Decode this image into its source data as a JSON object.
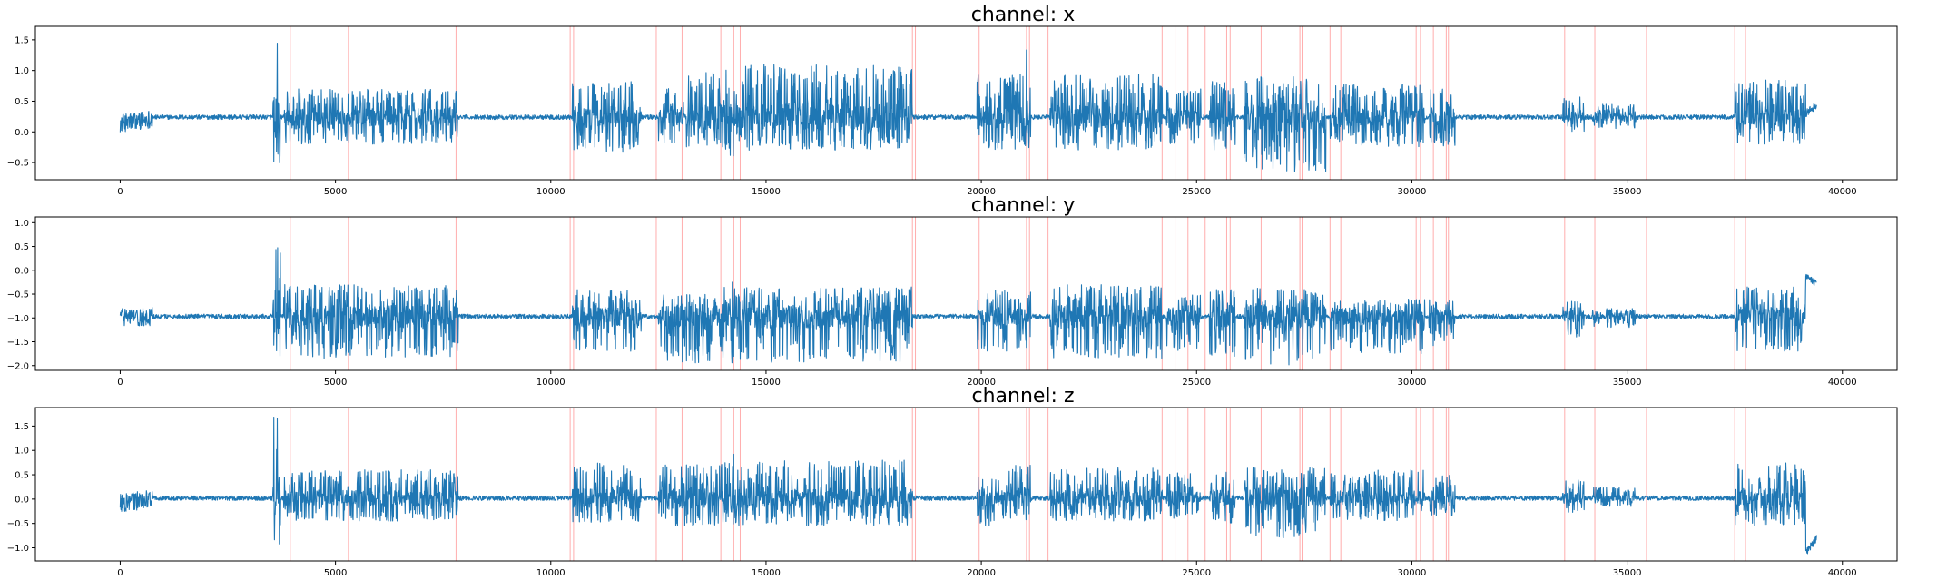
{
  "chart_data": [
    {
      "type": "line",
      "title": "channel: x",
      "xlim": [
        -1970,
        41270
      ],
      "ylim": [
        -0.78,
        1.72
      ],
      "xticks": [
        0,
        5000,
        10000,
        15000,
        20000,
        25000,
        30000,
        35000,
        40000
      ],
      "yticks": [
        -0.5,
        0.0,
        0.5,
        1.0,
        1.5
      ],
      "ytick_labels": [
        "−0.5",
        "0.0",
        "0.5",
        "1.0",
        "1.5"
      ],
      "series_color": "#1f77b4",
      "baseline": 0.24,
      "sample_count": 39400,
      "start_segment": [
        [
          0,
          0.14
        ],
        [
          750,
          0.22
        ]
      ],
      "end_segment": [
        [
          39150,
          0.3
        ],
        [
          39400,
          0.44
        ]
      ],
      "bursts": [
        {
          "start": 3550,
          "end": 3720,
          "low": -0.65,
          "high": 1.58
        },
        {
          "start": 3800,
          "end": 7850,
          "low": -0.2,
          "high": 0.7
        },
        {
          "start": 10500,
          "end": 12100,
          "low": -0.35,
          "high": 0.82
        },
        {
          "start": 12500,
          "end": 13100,
          "low": -0.2,
          "high": 0.72
        },
        {
          "start": 13150,
          "end": 14400,
          "low": -0.3,
          "high": 1.0
        },
        {
          "start": 14000,
          "end": 14300,
          "low": -0.4,
          "high": 1.2
        },
        {
          "start": 14400,
          "end": 18400,
          "low": -0.3,
          "high": 1.1
        },
        {
          "start": 19900,
          "end": 21150,
          "low": -0.3,
          "high": 0.95
        },
        {
          "start": 20950,
          "end": 21100,
          "low": -0.25,
          "high": 1.6
        },
        {
          "start": 21600,
          "end": 24200,
          "low": -0.3,
          "high": 0.95
        },
        {
          "start": 24300,
          "end": 25100,
          "low": -0.2,
          "high": 0.7
        },
        {
          "start": 25300,
          "end": 25900,
          "low": -0.3,
          "high": 0.85
        },
        {
          "start": 26100,
          "end": 28000,
          "low": -0.65,
          "high": 0.9
        },
        {
          "start": 28100,
          "end": 30300,
          "low": -0.25,
          "high": 0.78
        },
        {
          "start": 30400,
          "end": 31000,
          "low": -0.25,
          "high": 0.72
        },
        {
          "start": 33500,
          "end": 34000,
          "low": 0.0,
          "high": 0.6
        },
        {
          "start": 34200,
          "end": 35200,
          "low": 0.05,
          "high": 0.45
        },
        {
          "start": 37500,
          "end": 39150,
          "low": -0.2,
          "high": 0.85
        }
      ]
    },
    {
      "type": "line",
      "title": "channel: y",
      "xlim": [
        -1970,
        41270
      ],
      "ylim": [
        -2.1,
        1.12
      ],
      "xticks": [
        0,
        5000,
        10000,
        15000,
        20000,
        25000,
        30000,
        35000,
        40000
      ],
      "yticks": [
        -2.0,
        -1.5,
        -1.0,
        -0.5,
        0.0,
        0.5,
        1.0
      ],
      "ytick_labels": [
        "−2.0",
        "−1.5",
        "−1.0",
        "−0.5",
        "0.0",
        "0.5",
        "1.0"
      ],
      "series_color": "#1f77b4",
      "baseline": -0.97,
      "sample_count": 39400,
      "start_segment": [
        [
          0,
          -1.0
        ],
        [
          750,
          -0.97
        ]
      ],
      "end_segment": [
        [
          39150,
          -0.15
        ],
        [
          39400,
          -0.28
        ]
      ],
      "bursts": [
        {
          "start": 3550,
          "end": 3720,
          "low": -2.0,
          "high": 0.55
        },
        {
          "start": 3800,
          "end": 7850,
          "low": -1.85,
          "high": -0.3
        },
        {
          "start": 10500,
          "end": 12100,
          "low": -1.7,
          "high": -0.4
        },
        {
          "start": 12500,
          "end": 14400,
          "low": -1.95,
          "high": -0.5
        },
        {
          "start": 14000,
          "end": 14300,
          "low": -2.0,
          "high": -0.2
        },
        {
          "start": 14400,
          "end": 18400,
          "low": -1.95,
          "high": -0.35
        },
        {
          "start": 19900,
          "end": 21150,
          "low": -1.7,
          "high": -0.4
        },
        {
          "start": 21600,
          "end": 24200,
          "low": -1.85,
          "high": -0.3
        },
        {
          "start": 24300,
          "end": 25100,
          "low": -1.7,
          "high": -0.5
        },
        {
          "start": 25300,
          "end": 25900,
          "low": -1.85,
          "high": -0.4
        },
        {
          "start": 26100,
          "end": 28000,
          "low": -2.0,
          "high": -0.35
        },
        {
          "start": 28100,
          "end": 30300,
          "low": -1.75,
          "high": -0.6
        },
        {
          "start": 30400,
          "end": 31000,
          "low": -1.6,
          "high": -0.5
        },
        {
          "start": 33500,
          "end": 34000,
          "low": -1.4,
          "high": -0.65
        },
        {
          "start": 34200,
          "end": 35200,
          "low": -1.2,
          "high": -0.8
        },
        {
          "start": 37500,
          "end": 39150,
          "low": -1.7,
          "high": -0.35
        }
      ]
    },
    {
      "type": "line",
      "title": "channel: z",
      "xlim": [
        -1970,
        41270
      ],
      "ylim": [
        -1.27,
        1.88
      ],
      "xticks": [
        0,
        5000,
        10000,
        15000,
        20000,
        25000,
        30000,
        35000,
        40000
      ],
      "yticks": [
        -1.0,
        -0.5,
        0.0,
        0.5,
        1.0,
        1.5
      ],
      "ytick_labels": [
        "−1.0",
        "−0.5",
        "0.0",
        "0.5",
        "1.0",
        "1.5"
      ],
      "series_color": "#1f77b4",
      "baseline": 0.02,
      "sample_count": 39400,
      "start_segment": [
        [
          0,
          -0.08
        ],
        [
          750,
          0.0
        ]
      ],
      "end_segment": [
        [
          39150,
          -1.1
        ],
        [
          39400,
          -0.8
        ]
      ],
      "bursts": [
        {
          "start": 3550,
          "end": 3720,
          "low": -0.95,
          "high": 1.75
        },
        {
          "start": 3800,
          "end": 7850,
          "low": -0.45,
          "high": 0.6
        },
        {
          "start": 10500,
          "end": 12100,
          "low": -0.5,
          "high": 0.78
        },
        {
          "start": 12500,
          "end": 14400,
          "low": -0.55,
          "high": 0.72
        },
        {
          "start": 14000,
          "end": 14300,
          "low": -0.6,
          "high": 1.0
        },
        {
          "start": 14400,
          "end": 18400,
          "low": -0.55,
          "high": 0.8
        },
        {
          "start": 19900,
          "end": 21150,
          "low": -0.55,
          "high": 0.7
        },
        {
          "start": 21600,
          "end": 24200,
          "low": -0.45,
          "high": 0.65
        },
        {
          "start": 24300,
          "end": 25100,
          "low": -0.4,
          "high": 0.55
        },
        {
          "start": 25300,
          "end": 25900,
          "low": -0.5,
          "high": 0.6
        },
        {
          "start": 26100,
          "end": 28000,
          "low": -0.8,
          "high": 0.65
        },
        {
          "start": 28100,
          "end": 30300,
          "low": -0.45,
          "high": 0.6
        },
        {
          "start": 30400,
          "end": 31000,
          "low": -0.4,
          "high": 0.5
        },
        {
          "start": 33500,
          "end": 34000,
          "low": -0.3,
          "high": 0.4
        },
        {
          "start": 34200,
          "end": 35200,
          "low": -0.15,
          "high": 0.25
        },
        {
          "start": 37500,
          "end": 39150,
          "low": -0.6,
          "high": 0.75
        }
      ]
    }
  ],
  "event_lines": {
    "color": "#ff9999",
    "x": [
      3950,
      5300,
      7800,
      10450,
      10530,
      12450,
      13050,
      13950,
      14250,
      14400,
      18400,
      18470,
      19950,
      21050,
      21120,
      21550,
      24200,
      24500,
      24800,
      25200,
      25700,
      25780,
      26500,
      27400,
      27450,
      28100,
      28350,
      30100,
      30200,
      30500,
      30800,
      30850,
      33550,
      34250,
      35450,
      37500,
      37750
    ]
  }
}
